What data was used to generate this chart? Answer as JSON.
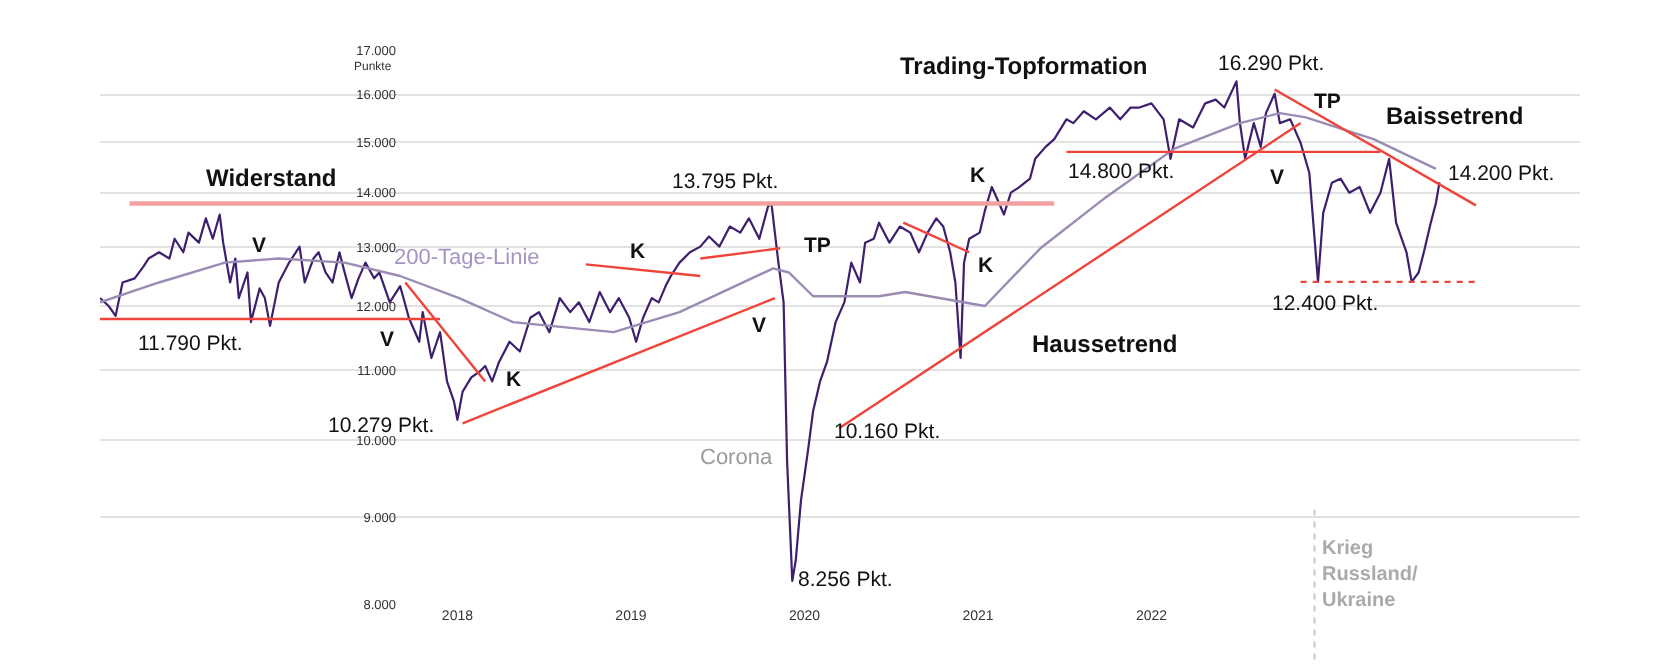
{
  "chart_data": {
    "type": "line",
    "ylabel": "Punkte",
    "log": "y",
    "grid": "y",
    "marker": "none",
    "xlim": [
      2015.94,
      2024.47
    ],
    "xticks": [
      2018,
      2019,
      2020,
      2021,
      2022
    ],
    "ylim": [
      8000,
      17000
    ],
    "yticks": [
      {
        "value": 8000,
        "label": "8.000"
      },
      {
        "value": 9000,
        "label": "9.000"
      },
      {
        "value": 10000,
        "label": "10.000"
      },
      {
        "value": 11000,
        "label": "11.000"
      },
      {
        "value": 12000,
        "label": "12.000"
      },
      {
        "value": 13000,
        "label": "13.000"
      },
      {
        "value": 14000,
        "label": "14.000"
      },
      {
        "value": 15000,
        "label": "15.000"
      },
      {
        "value": 16000,
        "label": "16.000"
      },
      {
        "value": 17000,
        "label": "17.000"
      }
    ],
    "series": [
      {
        "color": "#3d1f6e",
        "line_style": "solid",
        "x": [
          2015.94,
          2015.99,
          2016.03,
          2016.07,
          2016.14,
          2016.19,
          2016.22,
          2016.28,
          2016.34,
          2016.37,
          2016.42,
          2016.45,
          2016.51,
          2016.55,
          2016.59,
          2016.63,
          2016.65,
          2016.69,
          2016.72,
          2016.74,
          2016.79,
          2016.81,
          2016.86,
          2016.89,
          2016.92,
          2016.97,
          2017.03,
          2017.09,
          2017.12,
          2017.17,
          2017.2,
          2017.24,
          2017.28,
          2017.32,
          2017.35,
          2017.39,
          2017.43,
          2017.47,
          2017.52,
          2017.55,
          2017.61,
          2017.67,
          2017.72,
          2017.78,
          2017.8,
          2017.85,
          2017.9,
          2017.94,
          2017.98,
          2018.0,
          2018.03,
          2018.08,
          2018.13,
          2018.16,
          2018.2,
          2018.24,
          2018.3,
          2018.36,
          2018.42,
          2018.47,
          2018.53,
          2018.59,
          2018.65,
          2018.7,
          2018.76,
          2018.82,
          2018.88,
          2018.93,
          2018.99,
          2019.03,
          2019.07,
          2019.12,
          2019.16,
          2019.2,
          2019.23,
          2019.28,
          2019.34,
          2019.4,
          2019.45,
          2019.51,
          2019.57,
          2019.63,
          2019.68,
          2019.74,
          2019.79,
          2019.81,
          2019.85,
          2019.88,
          2019.9,
          2019.93,
          2019.95,
          2019.98,
          2020.02,
          2020.05,
          2020.09,
          2020.13,
          2020.18,
          2020.23,
          2020.27,
          2020.32,
          2020.35,
          2020.4,
          2020.43,
          2020.49,
          2020.55,
          2020.61,
          2020.66,
          2020.71,
          2020.76,
          2020.8,
          2020.84,
          2020.87,
          2020.9,
          2020.92,
          2020.95,
          2021.01,
          2021.04,
          2021.08,
          2021.11,
          2021.15,
          2021.19,
          2021.24,
          2021.3,
          2021.33,
          2021.39,
          2021.44,
          2021.51,
          2021.55,
          2021.61,
          2021.68,
          2021.76,
          2021.82,
          2021.88,
          2021.93,
          2022.0,
          2022.07,
          2022.11,
          2022.16,
          2022.24,
          2022.31,
          2022.37,
          2022.42,
          2022.49,
          2022.51,
          2022.54,
          2022.59,
          2022.63,
          2022.66,
          2022.71,
          2022.74,
          2022.8,
          2022.86,
          2022.91,
          2022.96,
          2022.99,
          2023.04,
          2023.09,
          2023.14,
          2023.2,
          2023.26,
          2023.32,
          2023.37,
          2023.41,
          2023.43,
          2023.47,
          2023.5,
          2023.54,
          2023.57,
          2023.61,
          2023.64,
          2023.66
        ],
        "values": [
          12130,
          12000,
          11840,
          12390,
          12460,
          12660,
          12800,
          12910,
          12800,
          13150,
          12910,
          13260,
          13080,
          13520,
          13150,
          13590,
          13080,
          12390,
          12800,
          12130,
          12560,
          11740,
          12290,
          12130,
          11680,
          12390,
          12730,
          13010,
          12390,
          12800,
          12910,
          12560,
          12390,
          12910,
          12560,
          12130,
          12460,
          12730,
          12460,
          12560,
          12060,
          12330,
          11810,
          11430,
          11900,
          11180,
          11580,
          10830,
          10540,
          10279,
          10680,
          10890,
          10980,
          11060,
          10830,
          11120,
          11430,
          11280,
          11810,
          11900,
          11580,
          12130,
          11900,
          12060,
          11740,
          12230,
          11900,
          12130,
          11810,
          11430,
          11810,
          12130,
          12060,
          12330,
          12500,
          12730,
          12910,
          13010,
          13190,
          13010,
          13370,
          13260,
          13520,
          13150,
          13740,
          13795,
          12730,
          12060,
          9720,
          8256,
          8490,
          9210,
          9850,
          10400,
          10830,
          11120,
          11740,
          12060,
          12730,
          12390,
          13080,
          13150,
          13440,
          13080,
          13370,
          13260,
          12910,
          13260,
          13520,
          13370,
          12910,
          12390,
          11180,
          12730,
          13150,
          13260,
          13660,
          14110,
          13890,
          13590,
          14000,
          14110,
          14270,
          14660,
          14900,
          15060,
          15470,
          15390,
          15640,
          15470,
          15720,
          15470,
          15720,
          15720,
          15810,
          15470,
          14660,
          15470,
          15300,
          15810,
          15890,
          15720,
          16290,
          15390,
          14660,
          15390,
          14900,
          15600,
          16020,
          15390,
          15470,
          14980,
          14380,
          12400,
          13620,
          14190,
          14270,
          14000,
          14110,
          13620,
          14000,
          14660,
          13440,
          13260,
          12910,
          12400,
          12560,
          12910,
          13440,
          13810,
          14200
        ]
      },
      {
        "color": "#9b8bb5",
        "line_style": "solid",
        "x": [
          2015.94,
          2016.28,
          2016.66,
          2016.97,
          2017.35,
          2017.67,
          2018.01,
          2018.32,
          2018.9,
          2019.28,
          2019.82,
          2019.91,
          2020.05,
          2020.43,
          2020.58,
          2021.04,
          2021.36,
          2021.74,
          2022.13,
          2022.51,
          2022.74,
          2022.89,
          2023.28,
          2023.64
        ],
        "values": [
          12060,
          12390,
          12730,
          12800,
          12730,
          12500,
          12130,
          11740,
          11580,
          11900,
          12630,
          12560,
          12160,
          12160,
          12230,
          12000,
          12980,
          13920,
          14860,
          15390,
          15600,
          15510,
          15060,
          14460
        ]
      },
      {
        "color": "#f4a0a0",
        "line_style": "solid",
        "x": [
          2016.11,
          2021.44
        ],
        "values": [
          13795,
          13795
        ]
      },
      {
        "color": "#f0443a",
        "line_style": "solid",
        "x": [
          2015.94,
          2017.9
        ],
        "values": [
          11790,
          11790
        ]
      },
      {
        "color": "#f0443a",
        "line_style": "solid",
        "x": [
          2017.7,
          2018.16
        ],
        "values": [
          12390,
          10830
        ]
      },
      {
        "color": "#f0443a",
        "line_style": "solid",
        "x": [
          2018.03,
          2019.83
        ],
        "values": [
          10230,
          12130
        ]
      },
      {
        "color": "#f0443a",
        "line_style": "solid",
        "x": [
          2018.74,
          2019.4
        ],
        "values": [
          12700,
          12500
        ]
      },
      {
        "color": "#f0443a",
        "line_style": "solid",
        "x": [
          2019.4,
          2019.86
        ],
        "values": [
          12800,
          12980
        ]
      },
      {
        "color": "#f0443a",
        "line_style": "solid",
        "x": [
          2020.2,
          2022.86
        ],
        "values": [
          10160,
          15390
        ]
      },
      {
        "color": "#f0443a",
        "line_style": "solid",
        "x": [
          2020.57,
          2020.95
        ],
        "values": [
          13440,
          12910
        ]
      },
      {
        "color": "#f0443a",
        "line_style": "solid",
        "x": [
          2021.51,
          2023.32
        ],
        "values": [
          14800,
          14800
        ]
      },
      {
        "color": "#f0443a",
        "line_style": "solid",
        "x": [
          2022.71,
          2023.87
        ],
        "values": [
          16110,
          13760
        ]
      },
      {
        "color": "#f0443a",
        "line_style": "dotted",
        "x": [
          2022.86,
          2023.87
        ],
        "values": [
          12400,
          12400
        ]
      }
    ],
    "ref_lines": [
      {
        "axis": "x",
        "value": 2022.94,
        "label": "Krieg\nRussland/\nUkraine",
        "color": "#c8c8c8",
        "line_style": "dotted"
      }
    ],
    "annotations": [
      "Widerstand",
      "11.790 Pkt.",
      "V",
      "V",
      "K",
      "10.279 Pkt.",
      "200-Tage-Linie",
      "13.795 Pkt.",
      "K",
      "TP",
      "V",
      "Corona",
      "8.256 Pkt.",
      "10.160 Pkt.",
      "K",
      "K",
      "14.800 Pkt.",
      "Trading-Topformation",
      "16.290 Pkt.",
      "TP",
      "Baissetrend",
      "V",
      "14.200 Pkt.",
      "12.400 Pkt.",
      "Haussetrend"
    ]
  }
}
